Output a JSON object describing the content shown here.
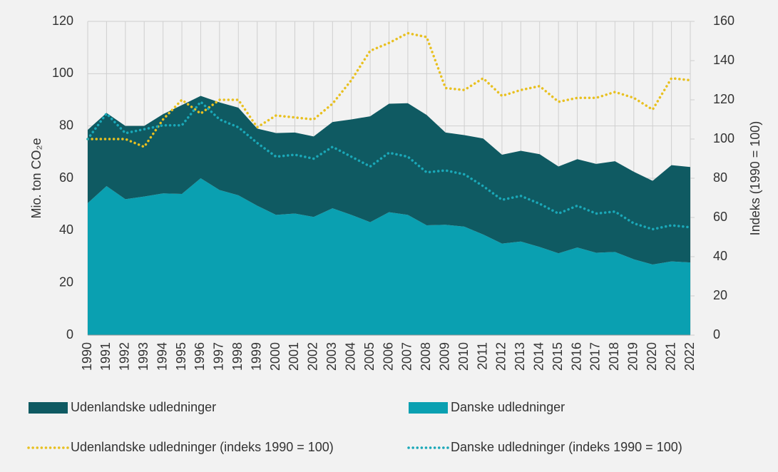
{
  "chart_data": {
    "type": "area_line",
    "ylabel": "Mio. ton CO₂e",
    "y2label": "Indeks (1990 = 100)",
    "categories": [
      "1990",
      "1991",
      "1992",
      "1993",
      "1994",
      "1995",
      "1996",
      "1997",
      "1998",
      "1999",
      "2000",
      "2001",
      "2002",
      "2003",
      "2004",
      "2005",
      "2006",
      "2007",
      "2008",
      "2009",
      "2010",
      "2011",
      "2012",
      "2013",
      "2014",
      "2015",
      "2016",
      "2017",
      "2018",
      "2019",
      "2020",
      "2021",
      "2022"
    ],
    "series": [
      {
        "name": "Udenlandske udledninger",
        "color": "#0f5a62",
        "kind": "area",
        "values": [
          28,
          28,
          28,
          27,
          30.3,
          34,
          31.5,
          33.5,
          33.5,
          29.5,
          31.3,
          31,
          30.8,
          33,
          36.5,
          40.5,
          41.5,
          42.7,
          42.2,
          35.3,
          35,
          36.7,
          34,
          34.7,
          35.5,
          33.2,
          33.8,
          34,
          34.7,
          33.5,
          32,
          36.8,
          36.5
        ]
      },
      {
        "name": "Danske udledninger",
        "color": "#0aa0b1",
        "kind": "area",
        "values": [
          50.5,
          57,
          52,
          53,
          54.2,
          54,
          60,
          55.5,
          53.5,
          49.5,
          46,
          46.5,
          45.2,
          48.5,
          46,
          43.2,
          47,
          46,
          42,
          42.2,
          41.5,
          38.5,
          35,
          35.8,
          33.7,
          31.3,
          33.5,
          31.5,
          31.8,
          29,
          27,
          28.2,
          27.8
        ]
      },
      {
        "name": "Udenlandske udledninger (indeks 1990 = 100)",
        "color": "#e8c020",
        "kind": "line",
        "axis": "y2",
        "values": [
          100,
          100,
          100,
          96,
          110,
          120,
          113,
          120,
          120,
          106,
          112,
          111,
          110,
          118,
          130,
          145,
          149,
          154,
          152,
          126,
          125,
          131,
          122,
          125,
          127,
          119,
          121,
          121,
          124,
          121,
          115,
          131,
          130
        ]
      },
      {
        "name": "Danske udledninger (indeks 1990 = 100)",
        "color": "#1aa8b8",
        "kind": "line",
        "axis": "y2",
        "values": [
          100,
          113,
          103,
          105,
          107,
          107,
          119,
          110,
          106,
          98,
          91,
          92,
          90,
          96,
          91,
          86,
          93,
          91,
          83,
          84,
          82,
          76,
          69,
          71,
          67,
          62,
          66,
          62,
          63,
          57,
          54,
          56,
          55
        ]
      }
    ],
    "ylim": [
      0,
      120
    ],
    "yticks": [
      0,
      20,
      40,
      60,
      80,
      100,
      120
    ],
    "y2lim": [
      0,
      160
    ],
    "y2ticks": [
      0,
      20,
      40,
      60,
      80,
      100,
      120,
      140,
      160
    ],
    "grid": true
  }
}
